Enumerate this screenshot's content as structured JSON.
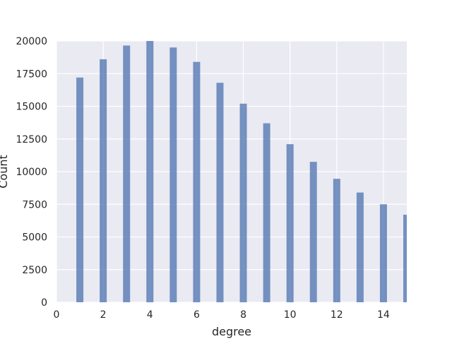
{
  "chart_data": {
    "type": "bar",
    "xlabel": "degree",
    "ylabel": "Count",
    "xlim": [
      0,
      15
    ],
    "ylim": [
      0,
      20000
    ],
    "x_ticks": [
      0,
      2,
      4,
      6,
      8,
      10,
      12,
      14
    ],
    "y_ticks": [
      0,
      2500,
      5000,
      7500,
      10000,
      12500,
      15000,
      17500,
      20000
    ],
    "grid": true,
    "bar_color": "#4c72b0",
    "plot_background": "#eaeaf2",
    "series": [
      {
        "x": [
          1,
          2,
          3,
          4,
          5,
          6,
          7,
          8,
          9,
          10,
          11,
          12,
          13,
          14,
          15
        ],
        "values": [
          17200,
          18600,
          19650,
          20000,
          19500,
          18400,
          16800,
          15200,
          13700,
          12100,
          10750,
          9450,
          8400,
          7500,
          6700
        ]
      }
    ]
  }
}
